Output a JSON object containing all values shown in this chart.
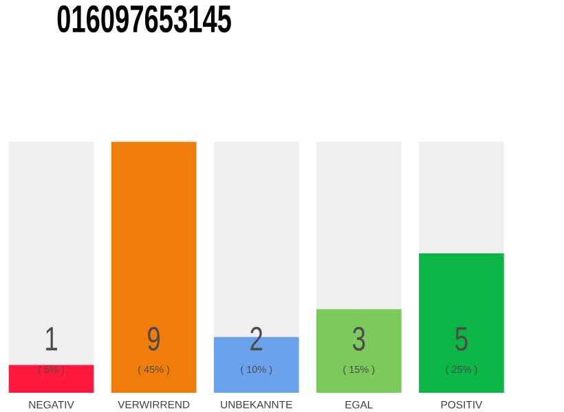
{
  "chart_data": {
    "type": "bar",
    "title": "016097653145",
    "categories": [
      "NEGATIV",
      "VERWIRREND",
      "UNBEKANNTE",
      "EGAL",
      "POSITIV"
    ],
    "values": [
      1,
      9,
      2,
      3,
      5
    ],
    "colors": [
      "#ff1a3d",
      "#f07c0a",
      "#6aa2ee",
      "#7cca5c",
      "#0cb646"
    ],
    "data_labels": true,
    "tick_labels": "x",
    "annotations": [
      "( 5% )",
      "( 45% )",
      "( 10% )",
      "( 15% )",
      "( 25% )"
    ]
  }
}
